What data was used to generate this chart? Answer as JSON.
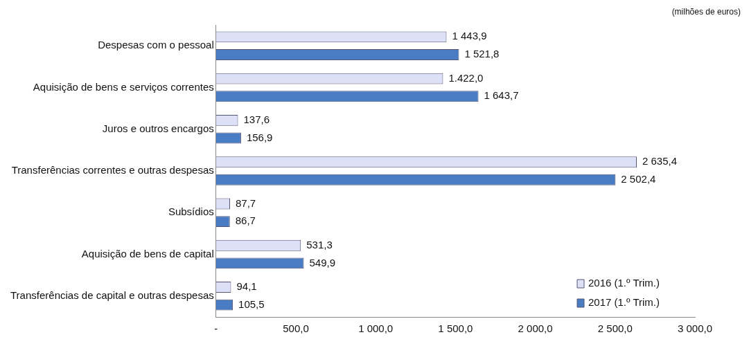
{
  "chart_data": {
    "type": "bar",
    "orientation": "horizontal",
    "annotations": [
      "(milhões de euros)"
    ],
    "categories": [
      "Despesas com o pessoal",
      "Aquisição de bens e serviços correntes",
      "Juros e outros encargos",
      "Transferências correntes e outras despesas",
      "Subsídios",
      "Aquisição de bens de capital",
      "Transferências de capital e outras despesas"
    ],
    "series": [
      {
        "name": "2016 (1.º Trim.)",
        "color": "#dde1f7",
        "values": [
          1443.9,
          1422.0,
          137.6,
          2635.4,
          87.7,
          531.3,
          94.1
        ],
        "value_labels": [
          "1 443,9",
          "1.422,0",
          "137,6",
          "2 635,4",
          "87,7",
          "531,3",
          "94,1"
        ]
      },
      {
        "name": "2017 (1.º Trim.)",
        "color": "#4a7cc4",
        "values": [
          1521.8,
          1643.7,
          156.9,
          2502.4,
          86.7,
          549.9,
          105.5
        ],
        "value_labels": [
          "1 521,8",
          "1 643,7",
          "156,9",
          "2 502,4",
          "86,7",
          "549,9",
          "105,5"
        ]
      }
    ],
    "xlim": [
      0,
      3000
    ],
    "xticks": [
      {
        "value": 0,
        "label": "-"
      },
      {
        "value": 500,
        "label": "500,0"
      },
      {
        "value": 1000,
        "label": "1 000,0"
      },
      {
        "value": 1500,
        "label": "1 500,0"
      },
      {
        "value": 2000,
        "label": "2 000,0"
      },
      {
        "value": 2500,
        "label": "2 500,0"
      },
      {
        "value": 3000,
        "label": "3 000,0"
      }
    ],
    "grid": false,
    "legend": "bottom right"
  }
}
